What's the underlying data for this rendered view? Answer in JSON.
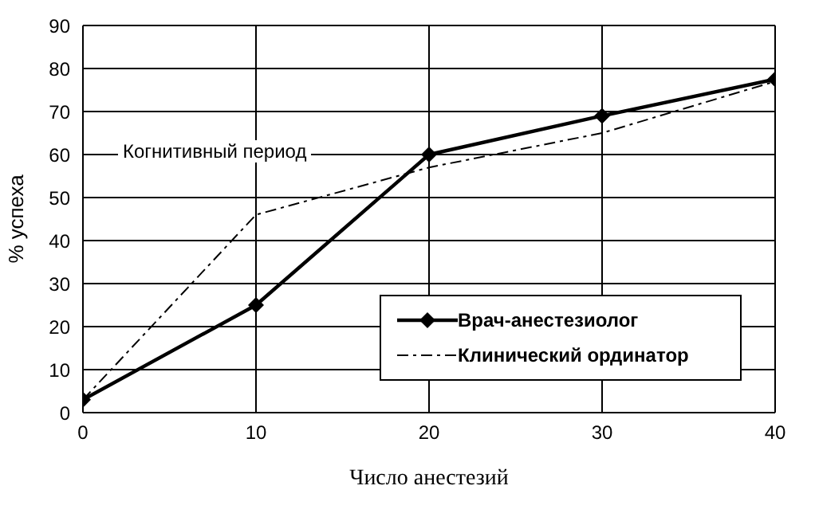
{
  "chart_data": {
    "type": "line",
    "xlabel": "Число анестезий",
    "ylabel": "% успеха",
    "x": [
      0,
      10,
      20,
      30,
      40
    ],
    "series": [
      {
        "name": "Врач-анестезиолог",
        "color": "#000000",
        "values": [
          3,
          25,
          60,
          69,
          77.5
        ],
        "marker": "diamond",
        "line_style": "solid"
      },
      {
        "name": "Клинический ординатор",
        "color": "#000000",
        "values": [
          3,
          46,
          57,
          65,
          77
        ],
        "marker": "none",
        "line_style": "dashed"
      }
    ],
    "xlim": [
      0,
      40
    ],
    "xticks": [
      0,
      10,
      20,
      30,
      40
    ],
    "ylim": [
      0,
      90
    ],
    "yticks": [
      0,
      10,
      20,
      30,
      40,
      50,
      60,
      70,
      80,
      90
    ],
    "grid": true,
    "legend": "bottom right",
    "annotations": [
      "Когнитивный период"
    ]
  }
}
